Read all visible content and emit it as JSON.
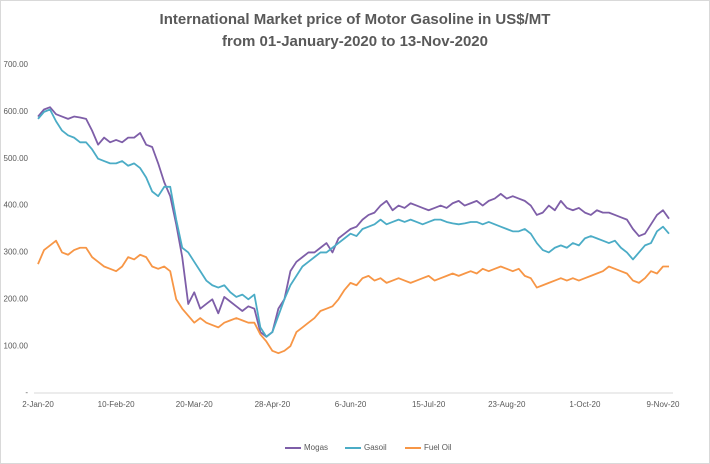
{
  "chart_data": {
    "type": "line",
    "title": [
      "International Market price of Motor Gasoline in US$/MT",
      "from 01-January-2020 to 13-Nov-2020"
    ],
    "categories": [
      "2-Jan-20",
      null,
      null,
      null,
      null,
      null,
      null,
      null,
      null,
      null,
      null,
      null,
      null,
      "10-Feb-20",
      null,
      null,
      null,
      null,
      null,
      null,
      null,
      null,
      null,
      null,
      null,
      null,
      "20-Mar-20",
      null,
      null,
      null,
      null,
      null,
      null,
      null,
      null,
      null,
      null,
      null,
      null,
      "28-Apr-20",
      null,
      null,
      null,
      null,
      null,
      null,
      null,
      null,
      null,
      null,
      null,
      null,
      "6-Jun-20",
      null,
      null,
      null,
      null,
      null,
      null,
      null,
      null,
      null,
      null,
      null,
      null,
      "15-Jul-20",
      null,
      null,
      null,
      null,
      null,
      null,
      null,
      null,
      null,
      null,
      null,
      null,
      "23-Aug-20",
      null,
      null,
      null,
      null,
      null,
      null,
      null,
      null,
      null,
      null,
      null,
      null,
      "1-Oct-20",
      null,
      null,
      null,
      null,
      null,
      null,
      null,
      null,
      null,
      null,
      null,
      null,
      "9-Nov-20",
      null
    ],
    "series": [
      {
        "name": "Mogas",
        "color": "#7e5ea8",
        "values": [
          590,
          605,
          610,
          595,
          590,
          585,
          590,
          588,
          585,
          560,
          530,
          545,
          535,
          540,
          535,
          545,
          545,
          555,
          530,
          525,
          490,
          450,
          420,
          360,
          290,
          190,
          215,
          180,
          190,
          200,
          170,
          205,
          195,
          185,
          175,
          185,
          180,
          130,
          120,
          130,
          180,
          200,
          260,
          280,
          290,
          300,
          300,
          310,
          320,
          300,
          330,
          340,
          350,
          355,
          370,
          380,
          385,
          400,
          410,
          390,
          400,
          395,
          405,
          400,
          395,
          390,
          395,
          400,
          395,
          405,
          410,
          400,
          405,
          410,
          400,
          410,
          415,
          425,
          415,
          420,
          415,
          410,
          400,
          380,
          385,
          400,
          390,
          410,
          395,
          390,
          395,
          385,
          380,
          390,
          385,
          385,
          380,
          375,
          370,
          350,
          335,
          340,
          360,
          380,
          390,
          372
        ]
      },
      {
        "name": "Gasoil",
        "color": "#4bacc6",
        "values": [
          585,
          600,
          605,
          580,
          560,
          550,
          545,
          535,
          535,
          520,
          500,
          495,
          490,
          490,
          495,
          485,
          490,
          480,
          460,
          430,
          420,
          440,
          440,
          370,
          310,
          300,
          280,
          260,
          240,
          230,
          225,
          230,
          215,
          205,
          210,
          200,
          210,
          140,
          120,
          130,
          165,
          200,
          230,
          250,
          270,
          280,
          290,
          300,
          300,
          310,
          320,
          330,
          340,
          335,
          350,
          355,
          360,
          370,
          360,
          365,
          370,
          365,
          370,
          365,
          360,
          365,
          370,
          370,
          365,
          362,
          360,
          362,
          365,
          365,
          360,
          365,
          360,
          355,
          350,
          345,
          345,
          350,
          340,
          320,
          305,
          300,
          310,
          315,
          310,
          320,
          315,
          330,
          335,
          330,
          325,
          320,
          325,
          310,
          300,
          285,
          300,
          315,
          320,
          345,
          355,
          340
        ]
      },
      {
        "name": "Fuel Oil",
        "color": "#f79646",
        "values": [
          275,
          305,
          315,
          325,
          300,
          295,
          305,
          310,
          310,
          290,
          280,
          270,
          265,
          260,
          270,
          290,
          285,
          295,
          290,
          270,
          265,
          270,
          260,
          200,
          180,
          165,
          150,
          160,
          150,
          145,
          140,
          150,
          155,
          160,
          155,
          150,
          150,
          125,
          110,
          90,
          85,
          90,
          100,
          130,
          140,
          150,
          160,
          175,
          180,
          185,
          200,
          220,
          235,
          230,
          245,
          250,
          240,
          245,
          235,
          240,
          245,
          240,
          235,
          240,
          245,
          250,
          240,
          245,
          250,
          255,
          250,
          255,
          260,
          255,
          265,
          260,
          265,
          270,
          265,
          260,
          265,
          250,
          245,
          225,
          230,
          235,
          240,
          245,
          240,
          245,
          240,
          245,
          250,
          255,
          260,
          270,
          265,
          260,
          255,
          240,
          235,
          245,
          260,
          255,
          270,
          270
        ]
      }
    ],
    "ylim": [
      0,
      700
    ],
    "yticks": [
      {
        "value": 0,
        "label": "-"
      },
      {
        "value": 100,
        "label": "100.00"
      },
      {
        "value": 200,
        "label": "200.00"
      },
      {
        "value": 300,
        "label": "300.00"
      },
      {
        "value": 400,
        "label": "400.00"
      },
      {
        "value": 500,
        "label": "500.00"
      },
      {
        "value": 600,
        "label": "600.00"
      },
      {
        "value": 700,
        "label": "700.00"
      }
    ],
    "legend": "bottom"
  }
}
